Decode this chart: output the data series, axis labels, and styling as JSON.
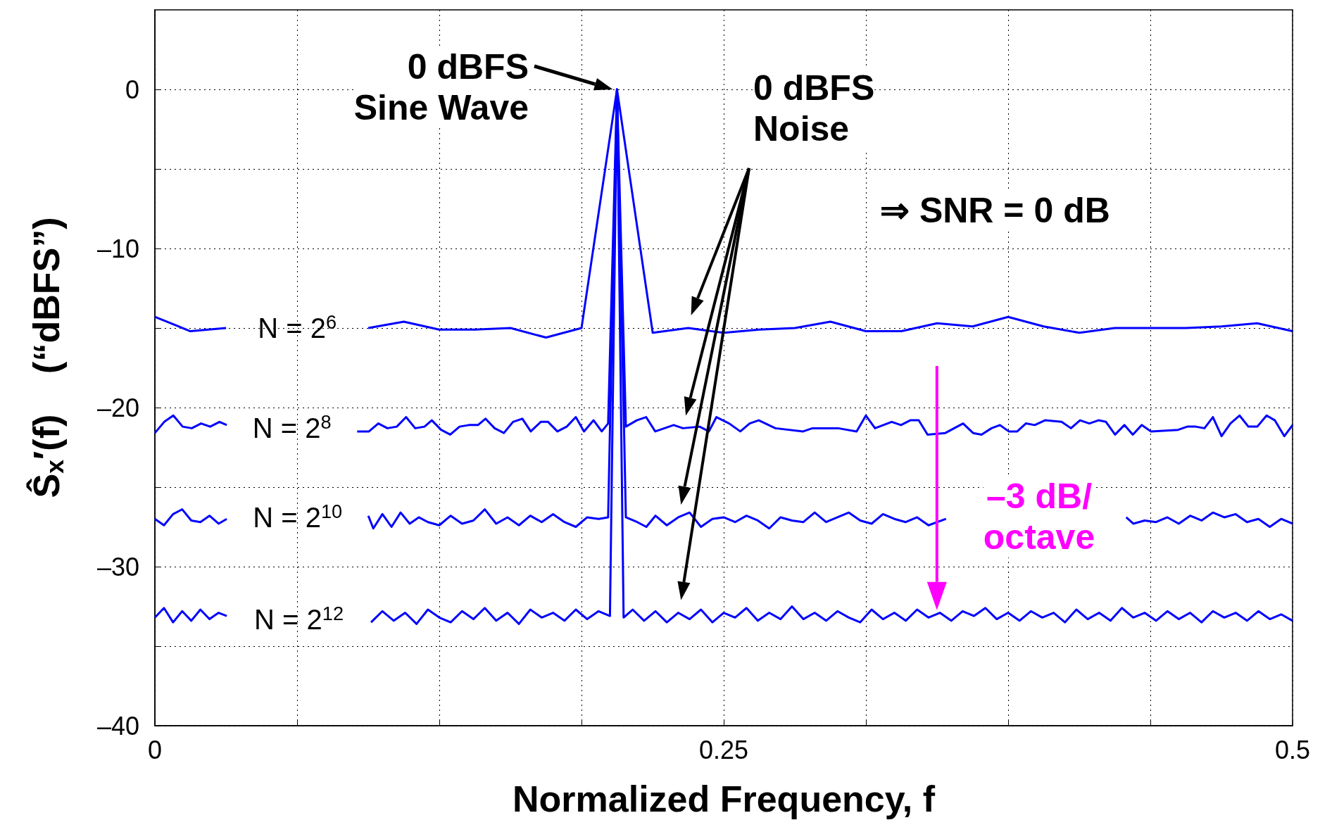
{
  "chart_data": {
    "type": "line",
    "xlabel": "Normalized Frequency, f",
    "ylabel": "Ŝ$_{x}$′(f)    (“dBFS”)",
    "xlim": [
      0,
      0.5
    ],
    "xticks": [
      0,
      {
        "value": 0.0625,
        "label": null
      },
      {
        "value": 0.125,
        "label": null
      },
      {
        "value": 0.1875,
        "label": null
      },
      0.25,
      {
        "value": 0.3125,
        "label": null
      },
      {
        "value": 0.375,
        "label": null
      },
      {
        "value": 0.4375,
        "label": null
      },
      0.5
    ],
    "ylim": [
      -40,
      5
    ],
    "yticks": [
      {
        "value": -40,
        "label": "–40"
      },
      {
        "value": -35,
        "label": null
      },
      {
        "value": -30,
        "label": "–30"
      },
      {
        "value": -25,
        "label": null
      },
      {
        "value": -20,
        "label": "–20"
      },
      {
        "value": -15,
        "label": null
      },
      {
        "value": -10,
        "label": "–10"
      },
      {
        "value": -5,
        "label": null
      },
      0
    ],
    "grid": true,
    "marker": "none",
    "line_style": "solid",
    "series": [
      {
        "name": "N = 2$^{6}$",
        "color": "#0000ff",
        "x": [
          0,
          0.0156,
          0.0313,
          0.06,
          0.0938,
          0.1094,
          0.125,
          0.1406,
          0.1563,
          0.1719,
          0.1875,
          0.2031,
          0.2188,
          0.2344,
          0.25,
          0.2656,
          0.2813,
          0.2969,
          0.3125,
          0.3281,
          0.3438,
          0.3594,
          0.375,
          0.3906,
          0.4063,
          0.4219,
          0.4375,
          0.4531,
          0.4688,
          0.4844,
          0.5
        ],
        "values": [
          -14.3,
          -15.2,
          -15.0,
          null,
          -15.0,
          -14.6,
          -15.1,
          -15.1,
          -15.0,
          -15.6,
          -15.0,
          0,
          -15.3,
          -15.0,
          -15.3,
          -15.1,
          -15.0,
          -14.6,
          -15.2,
          -15.2,
          -14.7,
          -14.9,
          -14.3,
          -14.9,
          -15.3,
          -15.0,
          -15.0,
          -15.0,
          -14.9,
          -14.7,
          -15.2
        ]
      },
      {
        "name": "N = 2$^{8}$",
        "color": "#0000ff",
        "x": [
          0,
          0.0041,
          0.0081,
          0.0122,
          0.0162,
          0.0203,
          0.0243,
          0.0284,
          0.0316,
          0.06,
          0.0889,
          0.0941,
          0.0982,
          0.1022,
          0.1063,
          0.1104,
          0.1144,
          0.1185,
          0.1217,
          0.1258,
          0.1298,
          0.1339,
          0.138,
          0.142,
          0.1453,
          0.1493,
          0.1534,
          0.1574,
          0.1615,
          0.1652,
          0.1696,
          0.1728,
          0.1769,
          0.181,
          0.185,
          0.1886,
          0.1928,
          0.1964,
          0.1992,
          0.2031,
          0.207,
          0.2118,
          0.2159,
          0.2199,
          0.224,
          0.228,
          0.2321,
          0.2394,
          0.2435,
          0.2468,
          0.2524,
          0.2573,
          0.2614,
          0.2654,
          0.2727,
          0.2849,
          0.289,
          0.3003,
          0.3084,
          0.3125,
          0.3165,
          0.3238,
          0.3279,
          0.332,
          0.3357,
          0.3396,
          0.3474,
          0.3552,
          0.3596,
          0.3633,
          0.3677,
          0.3714,
          0.3753,
          0.379,
          0.3828,
          0.3867,
          0.3912,
          0.3985,
          0.4026,
          0.4066,
          0.4107,
          0.4147,
          0.418,
          0.422,
          0.4261,
          0.4298,
          0.4337,
          0.4378,
          0.4497,
          0.4537,
          0.4574,
          0.4613,
          0.465,
          0.4688,
          0.4727,
          0.4767,
          0.4806,
          0.4845,
          0.4886,
          0.4922,
          0.4964,
          0.5
        ],
        "values": [
          -21.6,
          -20.9,
          -20.5,
          -21.2,
          -21.3,
          -21.0,
          -21.2,
          -20.9,
          -21.1,
          null,
          -21.5,
          -21.5,
          -21.0,
          -21.3,
          -21.2,
          -20.6,
          -21.3,
          -21.2,
          -20.8,
          -21.4,
          -21.7,
          -21.2,
          -21.1,
          -21.1,
          -20.7,
          -21.3,
          -21.6,
          -20.9,
          -20.7,
          -21.5,
          -20.9,
          -20.9,
          -21.5,
          -21.2,
          -20.6,
          -21.5,
          -20.8,
          -21.5,
          -21.0,
          0,
          -21.2,
          -20.8,
          -20.6,
          -21.5,
          -21.3,
          -21.1,
          -21.3,
          -21.2,
          -21.5,
          -20.6,
          -21.0,
          -21.5,
          -21.0,
          -20.8,
          -21.3,
          -21.5,
          -21.3,
          -21.3,
          -21.5,
          -20.5,
          -21.3,
          -20.9,
          -21.1,
          -20.8,
          -20.8,
          -21.7,
          -21.6,
          -21.0,
          -21.6,
          -21.7,
          -21.3,
          -21.1,
          -21.5,
          -21.5,
          -21.0,
          -21.1,
          -20.8,
          -20.9,
          -21.3,
          -20.8,
          -21.0,
          -20.8,
          -20.9,
          -21.7,
          -21.1,
          -21.7,
          -21.1,
          -21.5,
          -21.4,
          -21.2,
          -21.2,
          -21.3,
          -20.6,
          -21.8,
          -21.0,
          -20.5,
          -21.2,
          -21.2,
          -20.5,
          -20.8,
          -21.8,
          -21.1
        ]
      },
      {
        "name": "N = 2$^{10}$",
        "color": "#0000ff",
        "x": [
          0,
          0.004,
          0.008,
          0.012,
          0.016,
          0.02,
          0.024,
          0.028,
          0.0316,
          0.06,
          0.0938,
          0.096,
          0.1,
          0.104,
          0.108,
          0.112,
          0.116,
          0.12,
          0.125,
          0.13,
          0.135,
          0.14,
          0.145,
          0.15,
          0.155,
          0.16,
          0.165,
          0.17,
          0.175,
          0.18,
          0.185,
          0.19,
          0.195,
          0.1992,
          0.2031,
          0.207,
          0.212,
          0.216,
          0.22,
          0.225,
          0.23,
          0.235,
          0.24,
          0.245,
          0.25,
          0.255,
          0.26,
          0.265,
          0.27,
          0.275,
          0.28,
          0.285,
          0.29,
          0.295,
          0.3,
          0.305,
          0.31,
          0.315,
          0.32,
          0.325,
          0.33,
          0.335,
          0.34,
          0.3477,
          0.39,
          0.4269,
          0.43,
          0.435,
          0.44,
          0.445,
          0.45,
          0.455,
          0.46,
          0.465,
          0.47,
          0.475,
          0.48,
          0.485,
          0.49,
          0.495,
          0.5
        ],
        "values": [
          -27.0,
          -27.4,
          -26.7,
          -26.4,
          -27.1,
          -27.2,
          -26.8,
          -27.3,
          -27.0,
          null,
          -26.8,
          -27.6,
          -26.7,
          -27.5,
          -26.6,
          -27.3,
          -26.9,
          -27.2,
          -27.4,
          -26.8,
          -27.3,
          -27.1,
          -26.4,
          -27.3,
          -26.9,
          -27.4,
          -26.8,
          -27.2,
          -26.7,
          -27.2,
          -27.5,
          -26.9,
          -27.0,
          -26.9,
          0,
          -26.9,
          -27.2,
          -27.5,
          -26.8,
          -27.4,
          -26.9,
          -26.6,
          -27.5,
          -27.0,
          -26.9,
          -27.2,
          -26.8,
          -27.1,
          -27.6,
          -26.9,
          -27.1,
          -27.2,
          -26.6,
          -27.2,
          -26.9,
          -26.6,
          -27.1,
          -27.3,
          -26.7,
          -27.0,
          -27.2,
          -26.9,
          -27.4,
          -27.0,
          null,
          -26.9,
          -27.3,
          -27.1,
          -27.2,
          -26.9,
          -27.3,
          -26.8,
          -27.1,
          -26.6,
          -26.9,
          -26.7,
          -27.2,
          -27.0,
          -27.5,
          -27.0,
          -27.3
        ]
      },
      {
        "name": "N = 2$^{12}$",
        "color": "#0000ff",
        "x": [
          0,
          0.004,
          0.008,
          0.012,
          0.016,
          0.02,
          0.024,
          0.028,
          0.0316,
          0.06,
          0.095,
          0.1,
          0.105,
          0.11,
          0.115,
          0.12,
          0.125,
          0.13,
          0.135,
          0.14,
          0.145,
          0.15,
          0.155,
          0.16,
          0.165,
          0.17,
          0.175,
          0.18,
          0.185,
          0.19,
          0.195,
          0.2,
          0.2031,
          0.206,
          0.21,
          0.215,
          0.22,
          0.225,
          0.23,
          0.235,
          0.24,
          0.245,
          0.25,
          0.255,
          0.26,
          0.265,
          0.27,
          0.275,
          0.28,
          0.285,
          0.29,
          0.295,
          0.3,
          0.305,
          0.31,
          0.315,
          0.32,
          0.325,
          0.33,
          0.335,
          0.34,
          0.345,
          0.35,
          0.355,
          0.36,
          0.365,
          0.37,
          0.375,
          0.38,
          0.385,
          0.39,
          0.395,
          0.4,
          0.405,
          0.41,
          0.415,
          0.42,
          0.425,
          0.43,
          0.435,
          0.44,
          0.445,
          0.45,
          0.455,
          0.46,
          0.465,
          0.47,
          0.475,
          0.48,
          0.485,
          0.49,
          0.495,
          0.5
        ],
        "values": [
          -33.2,
          -32.6,
          -33.5,
          -32.8,
          -33.4,
          -32.7,
          -33.3,
          -32.9,
          -33.1,
          null,
          -33.5,
          -32.8,
          -33.4,
          -32.9,
          -33.6,
          -32.7,
          -33.2,
          -33.5,
          -32.8,
          -33.3,
          -32.6,
          -33.4,
          -32.9,
          -33.6,
          -32.7,
          -33.2,
          -32.9,
          -33.4,
          -32.7,
          -33.3,
          -32.8,
          -33.1,
          0,
          -33.2,
          -32.7,
          -33.4,
          -32.8,
          -33.5,
          -32.9,
          -33.3,
          -32.7,
          -33.5,
          -32.9,
          -33.2,
          -32.6,
          -33.4,
          -32.9,
          -33.3,
          -32.5,
          -33.3,
          -32.9,
          -33.4,
          -32.8,
          -33.2,
          -33.5,
          -32.7,
          -33.3,
          -32.9,
          -33.4,
          -32.7,
          -33.2,
          -32.9,
          -33.4,
          -32.8,
          -33.1,
          -32.6,
          -33.3,
          -32.9,
          -33.4,
          -32.8,
          -33.2,
          -32.9,
          -33.5,
          -32.7,
          -33.3,
          -32.9,
          -33.4,
          -32.6,
          -33.2,
          -32.9,
          -33.4,
          -32.8,
          -33.3,
          -32.9,
          -33.5,
          -32.8,
          -33.2,
          -32.9,
          -33.4,
          -32.8,
          -33.3,
          -33.0,
          -33.4
        ]
      }
    ],
    "annotations": [
      {
        "text": "0 dBFS\nSine Wave",
        "x": 0.2031,
        "y": 0
      },
      "0 dBFS\nNoise",
      "⇒ SNR = 0 dB",
      {
        "text": "–3 dB/\noctave",
        "x": 0.3437,
        "y": -33
      }
    ]
  }
}
